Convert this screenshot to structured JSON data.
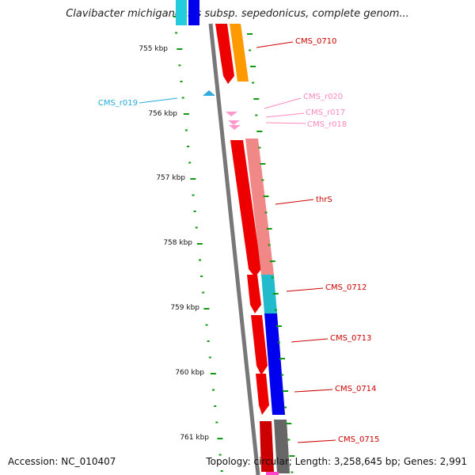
{
  "title": "Clavibacter michiganensis subsp. sepedonicus, complete genom...",
  "footer": {
    "accession": "Accession: NC_010407",
    "summary": "Topology: circular; Length: 3,258,645 bp; Genes: 2,991"
  },
  "axis": {
    "ticks": [
      "755 kbp",
      "756 kbp",
      "757 kbp",
      "758 kbp",
      "759 kbp",
      "760 kbp",
      "761 kbp"
    ]
  },
  "features": [
    {
      "id": "cms0710",
      "label": "CMS_0710",
      "color": "#ff9900",
      "label_color": "#cc0000"
    },
    {
      "id": "cmsr019",
      "label": "CMS_r019",
      "color": "#33aadd",
      "label_color": "#22aadd"
    },
    {
      "id": "cmsr020",
      "label": "CMS_r020",
      "color": "#ff99cc",
      "label_color": "#ff88bb"
    },
    {
      "id": "cmsr017",
      "label": "CMS_r017",
      "color": "#ff99cc",
      "label_color": "#ff88bb"
    },
    {
      "id": "cmsr018",
      "label": "CMS_r018",
      "color": "#ff99cc",
      "label_color": "#ff88bb"
    },
    {
      "id": "thrs",
      "label": "thrS",
      "color": "#f08888",
      "label_color": "#cc0000"
    },
    {
      "id": "cms0712",
      "label": "CMS_0712",
      "color": "#22bbcc",
      "label_color": "#cc0000"
    },
    {
      "id": "cms0713",
      "label": "CMS_0713",
      "color": "#0000ee",
      "label_color": "#cc0000"
    },
    {
      "id": "cms0714",
      "label": "CMS_0714",
      "color": "#0000ee",
      "label_color": "#cc0000"
    },
    {
      "id": "cms0715",
      "label": "CMS_0715",
      "color": "#666666",
      "label_color": "#cc0000"
    }
  ]
}
